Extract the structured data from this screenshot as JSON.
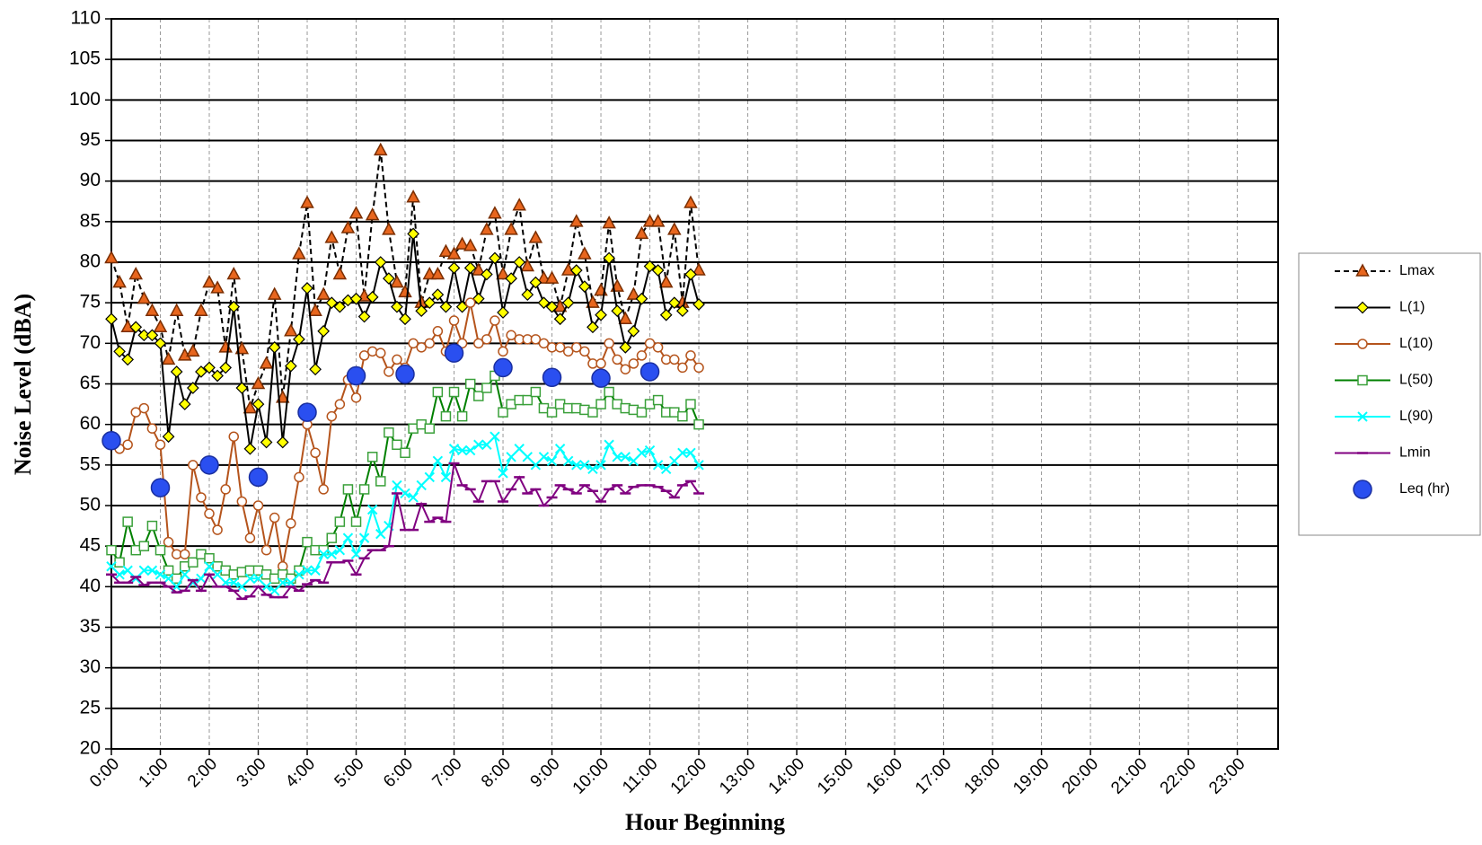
{
  "chart_data": {
    "type": "line",
    "y_label": "Noise Level (dBA)",
    "x_label": "Hour Beginning",
    "x": [
      0,
      10,
      20,
      30,
      40,
      50,
      60,
      70,
      80,
      90,
      100,
      110,
      120,
      130,
      140,
      150,
      160,
      170,
      180,
      190,
      200,
      210,
      220,
      230,
      240,
      250,
      260,
      270,
      280,
      290,
      300,
      310,
      320,
      330,
      340,
      350,
      360,
      370,
      380,
      390,
      400,
      410,
      420,
      430,
      440,
      450,
      460,
      470,
      480,
      490,
      500,
      510,
      520,
      530,
      540,
      550,
      560,
      570,
      580,
      590,
      600,
      610,
      620,
      630,
      640,
      650,
      660,
      670,
      680,
      690,
      700,
      710,
      720
    ],
    "xlim": [
      0,
      1430
    ],
    "xticks": [
      {
        "value": 0,
        "label": "0:00"
      },
      {
        "value": 60,
        "label": "1:00"
      },
      {
        "value": 120,
        "label": "2:00"
      },
      {
        "value": 180,
        "label": "3:00"
      },
      {
        "value": 240,
        "label": "4:00"
      },
      {
        "value": 300,
        "label": "5:00"
      },
      {
        "value": 360,
        "label": "6:00"
      },
      {
        "value": 420,
        "label": "7:00"
      },
      {
        "value": 480,
        "label": "8:00"
      },
      {
        "value": 540,
        "label": "9:00"
      },
      {
        "value": 600,
        "label": "10:00"
      },
      {
        "value": 660,
        "label": "11:00"
      },
      {
        "value": 720,
        "label": "12:00"
      },
      {
        "value": 780,
        "label": "13:00"
      },
      {
        "value": 840,
        "label": "14:00"
      },
      {
        "value": 900,
        "label": "15:00"
      },
      {
        "value": 960,
        "label": "16:00"
      },
      {
        "value": 1020,
        "label": "17:00"
      },
      {
        "value": 1080,
        "label": "18:00"
      },
      {
        "value": 1140,
        "label": "19:00"
      },
      {
        "value": 1200,
        "label": "20:00"
      },
      {
        "value": 1260,
        "label": "21:00"
      },
      {
        "value": 1320,
        "label": "22:00"
      },
      {
        "value": 1380,
        "label": "23:00"
      }
    ],
    "ylim": [
      20,
      110
    ],
    "yticks": [
      20,
      25,
      30,
      35,
      40,
      45,
      50,
      55,
      60,
      65,
      70,
      75,
      80,
      85,
      90,
      95,
      100,
      105,
      110
    ],
    "grid": true,
    "legend": "right",
    "series": [
      {
        "name": "Lmax",
        "color": "#000000",
        "dashed": true,
        "marker": "triangle",
        "marker_fill": "#e8661e",
        "marker_stroke": "#7a2e00",
        "values": [
          80.5,
          77.5,
          72,
          78.5,
          75.5,
          74,
          72,
          68,
          74,
          68.5,
          69,
          74,
          77.5,
          76.8,
          69.5,
          78.5,
          69.3,
          62,
          65,
          67.5,
          76,
          63.3,
          71.5,
          81,
          87.3,
          74,
          76,
          83,
          78.5,
          84.2,
          86,
          75.8,
          85.8,
          93.8,
          84,
          77.5,
          76.3,
          88,
          75,
          78.5,
          78.5,
          81.3,
          81,
          82.2,
          82,
          79,
          84,
          86,
          78.5,
          84,
          87,
          79.5,
          83,
          78,
          78,
          74.5,
          79,
          85,
          81,
          75,
          76.5,
          84.8,
          77,
          73,
          76,
          83.5,
          85,
          85,
          77.5,
          84,
          75,
          87.3,
          79
        ]
      },
      {
        "name": "L(1)",
        "color": "#000000",
        "marker": "diamond",
        "marker_fill": "#ffff00",
        "marker_stroke": "#000000",
        "values": [
          73,
          69,
          68,
          72,
          71,
          71,
          70,
          58.5,
          66.5,
          62.5,
          64.5,
          66.5,
          67,
          66,
          67,
          74.5,
          64.5,
          57,
          62.5,
          57.8,
          69.5,
          57.8,
          67.2,
          70.5,
          76.8,
          66.8,
          71.5,
          75,
          74.5,
          75.3,
          75.5,
          73.3,
          75.7,
          80,
          78,
          74.5,
          73,
          83.5,
          74,
          75,
          76,
          74.5,
          79.3,
          74.5,
          79.3,
          75.5,
          78.5,
          80.5,
          73.8,
          78,
          80,
          76,
          77.5,
          75,
          74.5,
          73,
          75,
          79,
          77,
          72,
          73.5,
          80.5,
          74,
          69.5,
          71.5,
          75.5,
          79.5,
          79,
          73.5,
          75,
          74,
          78.5,
          74.8
        ]
      },
      {
        "name": "L(10)",
        "color": "#b5541c",
        "marker": "circle",
        "marker_fill": "#ffffff",
        "marker_stroke": "#b5541c",
        "values": [
          57.5,
          57,
          57.5,
          61.5,
          62,
          59.5,
          57.5,
          45.5,
          44,
          44,
          55,
          51,
          49,
          47,
          52,
          58.5,
          50.5,
          46,
          50,
          44.5,
          48.5,
          42.5,
          47.8,
          53.5,
          60,
          56.5,
          52,
          61,
          62.5,
          65.5,
          63.3,
          68.5,
          69,
          68.8,
          66.5,
          68,
          67,
          70,
          69.5,
          70,
          71.5,
          69,
          72.8,
          70,
          75,
          70,
          70.5,
          72.8,
          69,
          71,
          70.5,
          70.5,
          70.5,
          70,
          69.5,
          69.5,
          69,
          69.5,
          69,
          67.5,
          67.5,
          70,
          68,
          66.8,
          67.5,
          68.5,
          70,
          69.5,
          68,
          68,
          67,
          68.5,
          67
        ]
      },
      {
        "name": "L(50)",
        "color": "#008000",
        "marker": "square",
        "marker_fill": "#ffffff",
        "marker_stroke": "#3aa03a",
        "values": [
          44.5,
          43,
          48,
          44.5,
          45,
          47.5,
          44.5,
          42,
          41,
          42.5,
          43,
          44,
          43.5,
          42.5,
          42,
          41.5,
          41.8,
          42,
          42,
          41.5,
          41,
          41.5,
          41,
          42,
          45.5,
          44.5,
          44.5,
          46,
          48,
          52,
          48,
          52,
          56,
          53,
          59,
          57.5,
          56.5,
          59.5,
          60,
          59.5,
          64,
          61,
          64,
          61,
          65,
          63.5,
          64.5,
          66,
          61.5,
          62.5,
          63,
          63,
          64,
          62,
          61.5,
          62.5,
          62,
          62,
          61.8,
          61.5,
          62.5,
          64,
          62.5,
          62,
          61.8,
          61.5,
          62.5,
          63,
          61.5,
          61.5,
          61,
          62.5,
          60
        ]
      },
      {
        "name": "L(90)",
        "color": "#00ffff",
        "marker": "x",
        "marker_fill": "none",
        "marker_stroke": "#00ffff",
        "values": [
          42.5,
          41.5,
          42,
          41,
          42,
          42,
          41.5,
          41,
          40,
          41.5,
          40.5,
          41,
          42.5,
          41.5,
          40.5,
          40.5,
          40,
          41,
          41,
          40,
          39.5,
          40.5,
          40.5,
          41.5,
          42,
          42,
          44,
          44,
          44.5,
          46,
          44,
          46,
          49.5,
          46.5,
          47.5,
          52.5,
          51.5,
          51,
          52.5,
          53.5,
          55.5,
          53.5,
          57,
          56.8,
          56.8,
          57.5,
          57.5,
          58.5,
          54,
          56,
          57,
          56,
          55,
          56,
          55.5,
          57,
          55.5,
          55,
          55,
          54.5,
          55,
          57.5,
          56,
          56,
          55.5,
          56.5,
          56.8,
          55,
          54.5,
          55.5,
          56.5,
          56.5,
          55
        ]
      },
      {
        "name": "Lmin",
        "color": "#800080",
        "marker": "dash",
        "marker_fill": "none",
        "marker_stroke": "#800080",
        "values": [
          41.5,
          40.5,
          40.5,
          41.2,
          40.2,
          40.5,
          40.5,
          40,
          39.3,
          39.5,
          40.8,
          39.5,
          41.5,
          40,
          40,
          39.5,
          38.5,
          38.8,
          40,
          39,
          38.7,
          38.7,
          40,
          39.5,
          40.3,
          40.8,
          40.5,
          43,
          43,
          43.2,
          41.5,
          43.5,
          44.5,
          44.5,
          45,
          51.5,
          47,
          47,
          50.2,
          48,
          48.5,
          48,
          55.2,
          52.5,
          52,
          50.5,
          53,
          53,
          50.5,
          52,
          53.5,
          51.5,
          52,
          50,
          51,
          52.5,
          52,
          51.5,
          52.5,
          51.8,
          50.5,
          52,
          52.5,
          51.5,
          52.3,
          52.5,
          52.5,
          52.3,
          51.8,
          51,
          52.5,
          53,
          51.5
        ]
      },
      {
        "name": "Leq (hr)",
        "color": "#2a4ff0",
        "line": false,
        "marker": "bigcircle",
        "marker_fill": "#2a4ff0",
        "marker_stroke": "#1a2fa0",
        "values": [
          58,
          null,
          null,
          null,
          null,
          null,
          52.2,
          null,
          null,
          null,
          null,
          null,
          55,
          null,
          null,
          null,
          null,
          null,
          53.5,
          null,
          null,
          null,
          null,
          null,
          61.5,
          null,
          null,
          null,
          null,
          null,
          66,
          null,
          null,
          null,
          null,
          null,
          66.2,
          null,
          null,
          null,
          null,
          null,
          68.8,
          null,
          null,
          null,
          null,
          null,
          67,
          null,
          null,
          null,
          null,
          null,
          65.8,
          null,
          null,
          null,
          null,
          null,
          65.7,
          null,
          null,
          null,
          null,
          null,
          66.5,
          null,
          null,
          null,
          null,
          null,
          null
        ]
      }
    ]
  }
}
